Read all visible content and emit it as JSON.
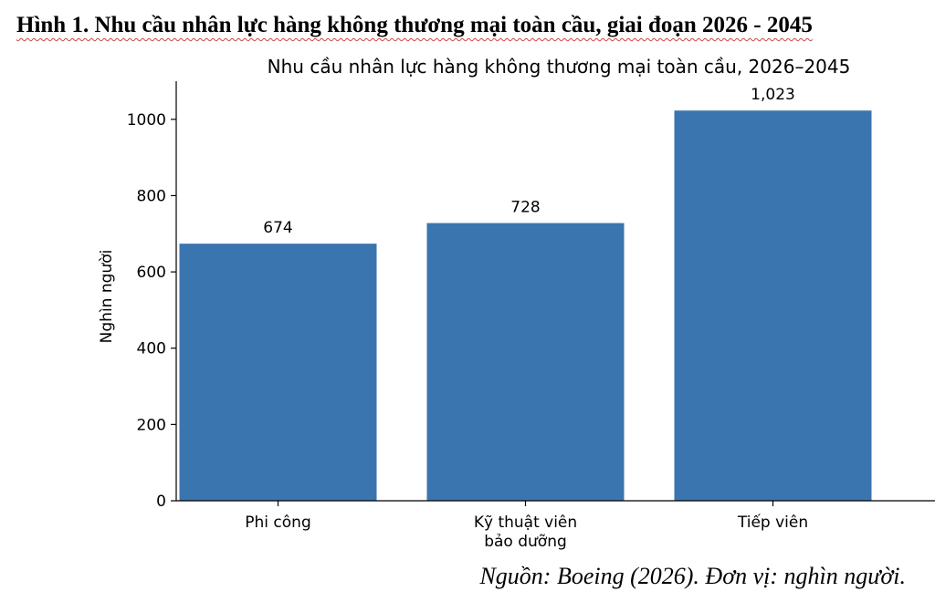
{
  "caption": "Hình 1. Nhu cầu nhân lực hàng không thương mại toàn cầu, giai đoạn 2026 - 2045",
  "source_note": "Nguồn: Boeing (2026). Đơn vị: nghìn người.",
  "colors": {
    "bar": "#3b75af",
    "axis": "#000000",
    "background": "#ffffff"
  },
  "chart_data": {
    "type": "bar",
    "title": "Nhu cầu nhân lực hàng không thương mại toàn cầu, 2026–2045",
    "xlabel": "",
    "ylabel": "Nghìn người",
    "categories": [
      "Phi công",
      "Kỹ thuật viên\nbảo dưỡng",
      "Tiếp viên"
    ],
    "values": [
      674,
      728,
      1023
    ],
    "value_labels": [
      "674",
      "728",
      "1,023"
    ],
    "yticks": [
      0,
      200,
      400,
      600,
      800,
      1000
    ],
    "ylim": [
      0,
      1100
    ],
    "grid": false,
    "legend": "none"
  }
}
